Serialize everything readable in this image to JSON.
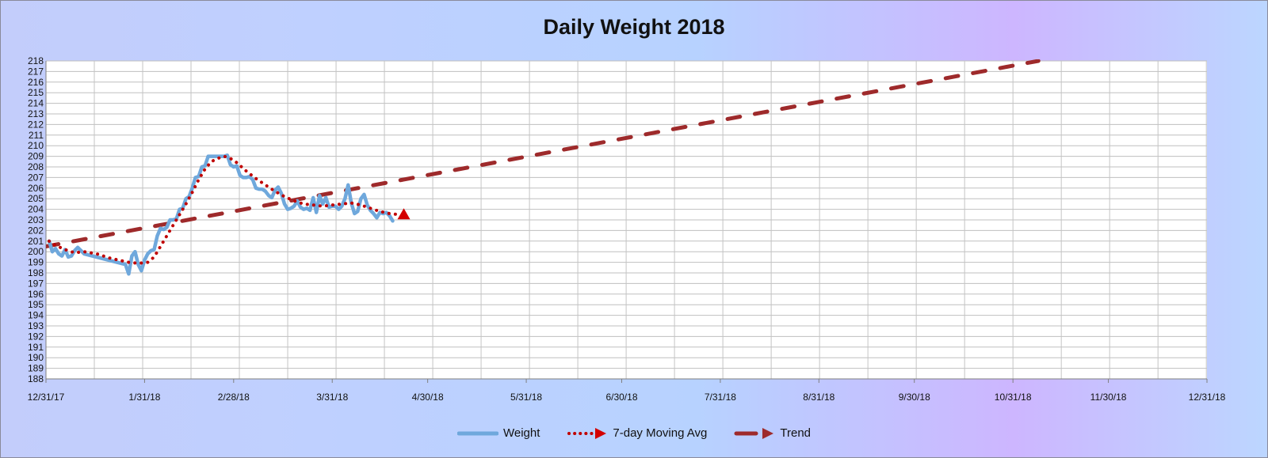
{
  "chart_data": {
    "type": "line",
    "title": "Daily Weight 2018",
    "xlabel": "",
    "ylabel": "",
    "ylim": [
      188,
      218
    ],
    "xlim": [
      "2017-12-31",
      "2018-12-31"
    ],
    "yticks": [
      "218",
      "217",
      "216",
      "215",
      "214",
      "213",
      "212",
      "211",
      "210",
      "209",
      "208",
      "207",
      "206",
      "205",
      "204",
      "203",
      "202",
      "201",
      "200",
      "199",
      "198",
      "197",
      "196",
      "195",
      "194",
      "193",
      "192",
      "191",
      "190",
      "189",
      "188"
    ],
    "xtick_labels": [
      {
        "date": "2017-12-31",
        "label": "12/31/17"
      },
      {
        "date": "2018-01-31",
        "label": "1/31/18"
      },
      {
        "date": "2018-02-28",
        "label": "2/28/18"
      },
      {
        "date": "2018-03-31",
        "label": "3/31/18"
      },
      {
        "date": "2018-04-30",
        "label": "4/30/18"
      },
      {
        "date": "2018-05-31",
        "label": "5/31/18"
      },
      {
        "date": "2018-06-30",
        "label": "6/30/18"
      },
      {
        "date": "2018-07-31",
        "label": "7/31/18"
      },
      {
        "date": "2018-08-31",
        "label": "8/31/18"
      },
      {
        "date": "2018-09-30",
        "label": "9/30/18"
      },
      {
        "date": "2018-10-31",
        "label": "10/31/18"
      },
      {
        "date": "2018-11-30",
        "label": "11/30/18"
      },
      {
        "date": "2018-12-31",
        "label": "12/31/18"
      }
    ],
    "grid": true,
    "legend_position": "bottom",
    "series": [
      {
        "name": "Weight",
        "style": "solid",
        "color": "#6fa8dc",
        "points": [
          [
            "2018-01-01",
            201.0
          ],
          [
            "2018-01-02",
            200.0
          ],
          [
            "2018-01-03",
            200.3
          ],
          [
            "2018-01-04",
            199.8
          ],
          [
            "2018-01-05",
            199.6
          ],
          [
            "2018-01-06",
            200.2
          ],
          [
            "2018-01-07",
            199.5
          ],
          [
            "2018-01-08",
            199.6
          ],
          [
            "2018-01-09",
            200.1
          ],
          [
            "2018-01-10",
            200.4
          ],
          [
            "2018-01-11",
            200.1
          ],
          [
            "2018-01-12",
            199.8
          ],
          [
            "2018-01-25",
            198.8
          ],
          [
            "2018-01-26",
            197.9
          ],
          [
            "2018-01-27",
            199.6
          ],
          [
            "2018-01-28",
            200.0
          ],
          [
            "2018-01-29",
            198.8
          ],
          [
            "2018-01-30",
            198.2
          ],
          [
            "2018-01-31",
            199.2
          ],
          [
            "2018-02-01",
            199.8
          ],
          [
            "2018-02-02",
            200.1
          ],
          [
            "2018-02-03",
            200.2
          ],
          [
            "2018-02-04",
            201.5
          ],
          [
            "2018-02-05",
            202.2
          ],
          [
            "2018-02-06",
            202.1
          ],
          [
            "2018-02-07",
            202.3
          ],
          [
            "2018-02-08",
            203.0
          ],
          [
            "2018-02-09",
            203.0
          ],
          [
            "2018-02-10",
            203.1
          ],
          [
            "2018-02-11",
            204.0
          ],
          [
            "2018-02-12",
            204.1
          ],
          [
            "2018-02-13",
            205.0
          ],
          [
            "2018-02-14",
            205.2
          ],
          [
            "2018-02-15",
            206.0
          ],
          [
            "2018-02-16",
            207.0
          ],
          [
            "2018-02-17",
            207.1
          ],
          [
            "2018-02-18",
            208.0
          ],
          [
            "2018-02-19",
            208.1
          ],
          [
            "2018-02-20",
            209.0
          ],
          [
            "2018-02-21",
            209.0
          ],
          [
            "2018-02-22",
            209.0
          ],
          [
            "2018-02-23",
            209.0
          ],
          [
            "2018-02-24",
            209.0
          ],
          [
            "2018-02-25",
            209.0
          ],
          [
            "2018-02-26",
            209.1
          ],
          [
            "2018-02-27",
            208.2
          ],
          [
            "2018-02-28",
            208.0
          ],
          [
            "2018-03-01",
            208.1
          ],
          [
            "2018-03-02",
            207.2
          ],
          [
            "2018-03-03",
            207.0
          ],
          [
            "2018-03-04",
            207.0
          ],
          [
            "2018-03-05",
            207.1
          ],
          [
            "2018-03-06",
            206.8
          ],
          [
            "2018-03-07",
            206.0
          ],
          [
            "2018-03-08",
            205.9
          ],
          [
            "2018-03-09",
            205.9
          ],
          [
            "2018-03-10",
            205.7
          ],
          [
            "2018-03-11",
            205.3
          ],
          [
            "2018-03-12",
            205.1
          ],
          [
            "2018-03-13",
            205.8
          ],
          [
            "2018-03-14",
            206.1
          ],
          [
            "2018-03-15",
            205.5
          ],
          [
            "2018-03-16",
            204.5
          ],
          [
            "2018-03-17",
            204.0
          ],
          [
            "2018-03-18",
            204.1
          ],
          [
            "2018-03-19",
            204.3
          ],
          [
            "2018-03-20",
            204.8
          ],
          [
            "2018-03-21",
            204.2
          ],
          [
            "2018-03-22",
            204.0
          ],
          [
            "2018-03-23",
            204.1
          ],
          [
            "2018-03-24",
            203.9
          ],
          [
            "2018-03-25",
            205.1
          ],
          [
            "2018-03-26",
            203.7
          ],
          [
            "2018-03-27",
            205.3
          ],
          [
            "2018-03-28",
            204.5
          ],
          [
            "2018-03-29",
            205.1
          ],
          [
            "2018-03-30",
            204.2
          ],
          [
            "2018-03-31",
            204.3
          ],
          [
            "2018-04-01",
            204.3
          ],
          [
            "2018-04-02",
            204.0
          ],
          [
            "2018-04-03",
            204.3
          ],
          [
            "2018-04-04",
            205.0
          ],
          [
            "2018-04-05",
            206.3
          ],
          [
            "2018-04-06",
            204.6
          ],
          [
            "2018-04-07",
            203.6
          ],
          [
            "2018-04-08",
            203.8
          ],
          [
            "2018-04-09",
            205.0
          ],
          [
            "2018-04-10",
            205.4
          ],
          [
            "2018-04-11",
            204.4
          ],
          [
            "2018-04-12",
            203.9
          ],
          [
            "2018-04-13",
            203.6
          ],
          [
            "2018-04-14",
            203.2
          ],
          [
            "2018-04-15",
            203.7
          ],
          [
            "2018-04-16",
            203.6
          ],
          [
            "2018-04-17",
            203.7
          ],
          [
            "2018-04-18",
            203.4
          ],
          [
            "2018-04-19",
            202.9
          ]
        ]
      },
      {
        "name": "7-day Moving Avg",
        "style": "dotted",
        "color": "#c00000",
        "points": [
          [
            "2018-01-01",
            201.0
          ],
          [
            "2018-01-03",
            200.6
          ],
          [
            "2018-01-06",
            200.2
          ],
          [
            "2018-01-09",
            199.9
          ],
          [
            "2018-01-12",
            200.0
          ],
          [
            "2018-01-16",
            199.8
          ],
          [
            "2018-01-20",
            199.4
          ],
          [
            "2018-01-23",
            199.2
          ],
          [
            "2018-01-26",
            199.0
          ],
          [
            "2018-01-29",
            198.9
          ],
          [
            "2018-02-01",
            199.0
          ],
          [
            "2018-02-03",
            199.5
          ],
          [
            "2018-02-05",
            200.5
          ],
          [
            "2018-02-07",
            201.5
          ],
          [
            "2018-02-09",
            202.5
          ],
          [
            "2018-02-11",
            203.5
          ],
          [
            "2018-02-13",
            204.5
          ],
          [
            "2018-02-15",
            205.6
          ],
          [
            "2018-02-17",
            206.8
          ],
          [
            "2018-02-19",
            207.8
          ],
          [
            "2018-02-21",
            208.5
          ],
          [
            "2018-02-23",
            208.8
          ],
          [
            "2018-02-25",
            209.0
          ],
          [
            "2018-02-27",
            208.8
          ],
          [
            "2018-03-01",
            208.4
          ],
          [
            "2018-03-04",
            207.6
          ],
          [
            "2018-03-07",
            206.9
          ],
          [
            "2018-03-10",
            206.3
          ],
          [
            "2018-03-13",
            205.7
          ],
          [
            "2018-03-16",
            205.2
          ],
          [
            "2018-03-19",
            204.8
          ],
          [
            "2018-03-22",
            204.5
          ],
          [
            "2018-03-25",
            204.4
          ],
          [
            "2018-03-28",
            204.3
          ],
          [
            "2018-03-31",
            204.4
          ],
          [
            "2018-04-03",
            204.5
          ],
          [
            "2018-04-06",
            204.6
          ],
          [
            "2018-04-09",
            204.4
          ],
          [
            "2018-04-12",
            204.1
          ],
          [
            "2018-04-15",
            203.8
          ],
          [
            "2018-04-18",
            203.6
          ],
          [
            "2018-04-21",
            203.5
          ]
        ]
      },
      {
        "name": "Trend",
        "style": "dashed",
        "color": "#9e2a2b",
        "points": [
          [
            "2017-12-31",
            200.5
          ],
          [
            "2018-11-08",
            218.0
          ]
        ]
      }
    ]
  }
}
